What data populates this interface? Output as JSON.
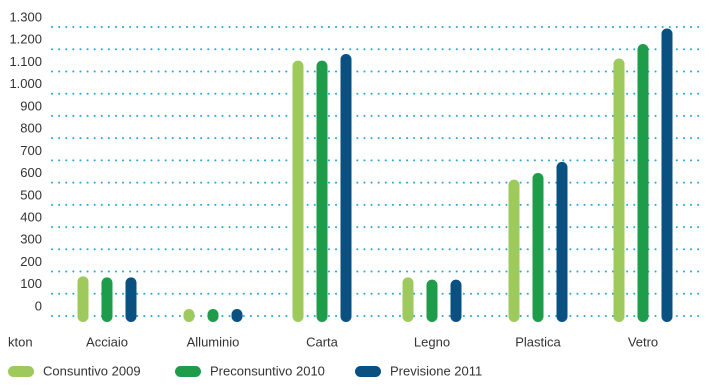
{
  "chart_data": {
    "type": "bar",
    "y_label": "kton",
    "categories": [
      "Acciaio",
      "Alluminio",
      "Carta",
      "Legno",
      "Plastica",
      "Vetro"
    ],
    "series": [
      {
        "name": "Consuntivo 2009",
        "color": "#9dc95d",
        "values": [
          165,
          18,
          1135,
          160,
          600,
          1145
        ]
      },
      {
        "name": "Preconsuntivo 2010",
        "color": "#1f9c4a",
        "values": [
          160,
          18,
          1135,
          150,
          630,
          1210
        ]
      },
      {
        "name": "Previsione 2011",
        "color": "#0a5080",
        "values": [
          160,
          18,
          1165,
          150,
          680,
          1280
        ]
      }
    ],
    "ylim": [
      0,
      1300
    ],
    "yticks": [
      0,
      100,
      200,
      300,
      400,
      500,
      600,
      700,
      800,
      900,
      {
        "value": 1000,
        "label": "1.000"
      },
      {
        "value": 1100,
        "label": "1.100"
      },
      {
        "value": 1200,
        "label": "1.200"
      },
      {
        "value": 1300,
        "label": "1.300"
      }
    ],
    "grid": true
  }
}
